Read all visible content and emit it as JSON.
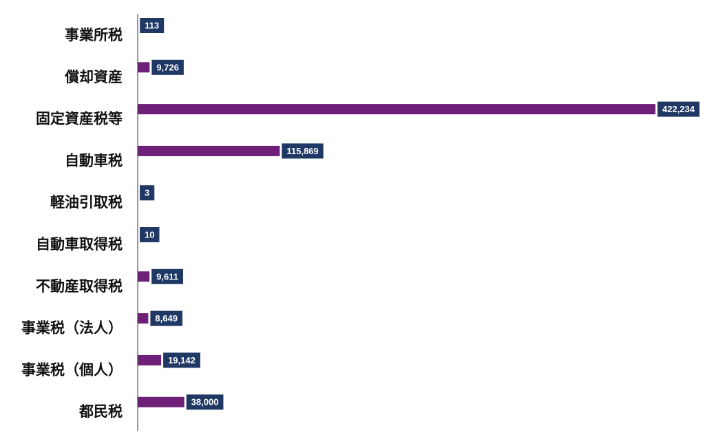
{
  "chart_data": {
    "type": "bar",
    "orientation": "horizontal",
    "categories": [
      "事業所税",
      "償却資産",
      "固定資産税等",
      "自動車税",
      "軽油引取税",
      "自動車取得税",
      "不動産取得税",
      "事業税（法人）",
      "事業税（個人）",
      "都民税"
    ],
    "values": [
      113,
      9726,
      422234,
      115869,
      3,
      10,
      9611,
      8649,
      19142,
      38000
    ],
    "value_labels": [
      "113",
      "9,726",
      "422,234",
      "115,869",
      "3",
      "10",
      "9,611",
      "8,649",
      "19,142",
      "38,000"
    ],
    "title": "",
    "xlabel": "",
    "ylabel": "",
    "xlim": [
      0,
      422234
    ],
    "grid": false,
    "legend": "none",
    "colors": {
      "bar": "#6e2079",
      "label_box": "#1f3864",
      "label_text": "#ffffff",
      "axis": "#333333",
      "category_text": "#111111"
    }
  }
}
